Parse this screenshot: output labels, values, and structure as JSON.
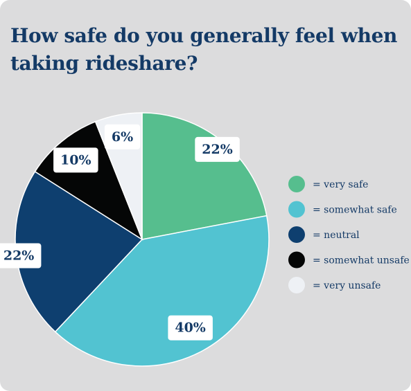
{
  "title": "How safe do you generally feel when taking rideshare?",
  "chart_data": {
    "type": "pie",
    "title": "How safe do you generally feel when taking rideshare?",
    "categories": [
      "very safe",
      "somewhat safe",
      "neutral",
      "somewhat unsafe",
      "very unsafe"
    ],
    "values": [
      22,
      40,
      22,
      10,
      6
    ],
    "labels": [
      "22%",
      "40%",
      "22%",
      "10%",
      "6%"
    ],
    "legend": [
      "= very safe",
      "= somewhat safe",
      "= neutral",
      "= somewhat unsafe",
      "= very unsafe"
    ],
    "colors": [
      "#56be8e",
      "#52c3d1",
      "#0e3f6f",
      "#050606",
      "#eef1f5"
    ],
    "legend_position": "right"
  }
}
